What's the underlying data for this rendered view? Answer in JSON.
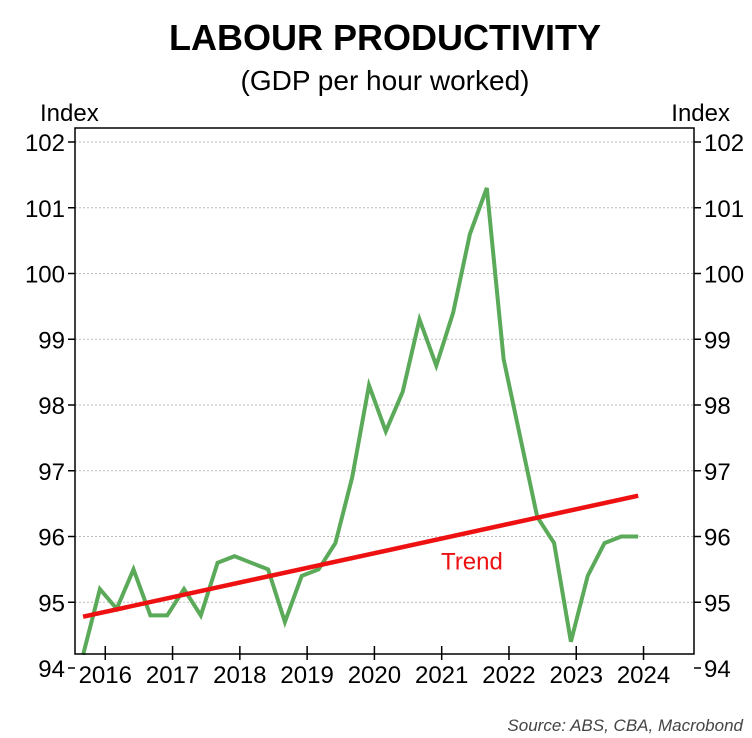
{
  "chart_data": {
    "type": "line",
    "title": "LABOUR PRODUCTIVITY",
    "subtitle": "(GDP per hour worked)",
    "ylabel_left": "Index",
    "ylabel_right": "Index",
    "source": "Source: ABS, CBA, Macrobond",
    "ylim": [
      94,
      102
    ],
    "yticks": [
      94,
      95,
      96,
      97,
      98,
      99,
      100,
      101,
      102
    ],
    "xlim": [
      2015.55,
      2024.75
    ],
    "xticks": [
      2016,
      2017,
      2018,
      2019,
      2020,
      2021,
      2022,
      2023,
      2024
    ],
    "grid": true,
    "series": [
      {
        "name": "",
        "color": "#5aaa5a",
        "x": [
          2015.67,
          2015.92,
          2016.17,
          2016.42,
          2016.67,
          2016.92,
          2017.17,
          2017.42,
          2017.67,
          2017.92,
          2018.17,
          2018.42,
          2018.67,
          2018.92,
          2019.17,
          2019.42,
          2019.67,
          2019.92,
          2020.17,
          2020.42,
          2020.67,
          2020.92,
          2021.17,
          2021.42,
          2021.67,
          2021.92,
          2022.17,
          2022.42,
          2022.67,
          2022.92,
          2023.17,
          2023.42,
          2023.67,
          2023.92
        ],
        "values": [
          94.2,
          95.2,
          94.9,
          95.5,
          94.8,
          94.8,
          95.2,
          94.8,
          95.6,
          95.7,
          95.6,
          95.5,
          94.7,
          95.4,
          95.5,
          95.9,
          96.9,
          98.3,
          97.6,
          98.2,
          99.3,
          98.6,
          99.4,
          100.6,
          101.3,
          98.7,
          97.5,
          96.3,
          95.9,
          94.4,
          95.4,
          95.9,
          96.0,
          96.0
        ]
      },
      {
        "name": "Trend",
        "color": "#ee1111",
        "x": [
          2015.67,
          2023.92
        ],
        "values": [
          94.78,
          96.62
        ]
      }
    ],
    "annotations": [
      {
        "text": "Trend",
        "x": 2021.45,
        "y": 95.5,
        "color": "#ee1111"
      }
    ]
  }
}
